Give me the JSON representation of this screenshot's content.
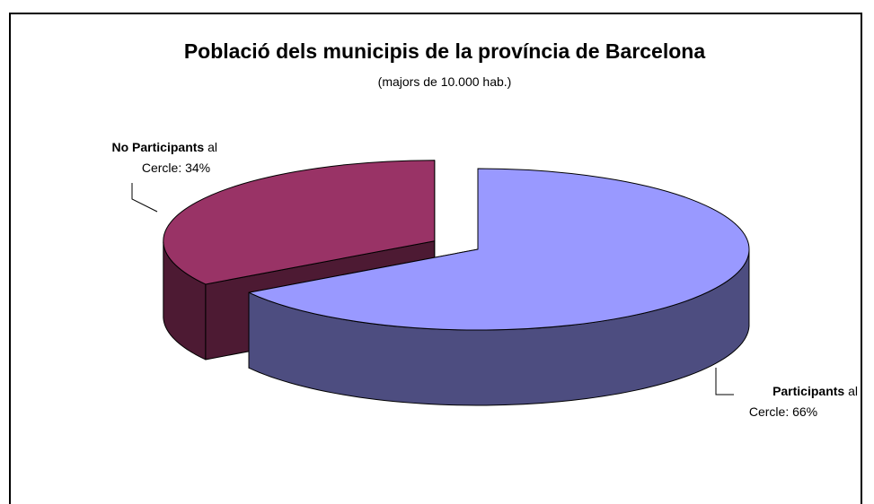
{
  "chart_data": {
    "type": "pie",
    "title": "Població dels municipis de la província de Barcelona",
    "subtitle": "(majors de 10.000 hab.)",
    "slices": [
      {
        "label_bold": "Participants",
        "label_rest": " al",
        "label_line2": "Cercle: 66%",
        "value": 66,
        "top_color": "#9999ff",
        "side_color": "#4d4d80",
        "exploded": false
      },
      {
        "label_bold": "No Participants",
        "label_rest": " al",
        "label_line2": "Cercle: 34%",
        "value": 34,
        "top_color": "#993366",
        "side_color": "#4d1a33",
        "exploded": true
      }
    ]
  }
}
